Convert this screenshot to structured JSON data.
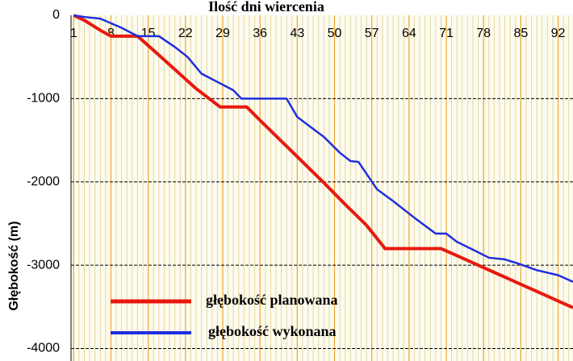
{
  "chart_data": {
    "type": "line",
    "title": "Ilość dni wiercenia",
    "y_label": "Głębokość (m)",
    "xlim": [
      0.5,
      94.8
    ],
    "xticks": [
      1,
      8,
      15,
      22,
      29,
      36,
      43,
      50,
      57,
      64,
      71,
      78,
      85,
      92
    ],
    "ylim": [
      -4150,
      0
    ],
    "yticks": [
      0,
      -1000,
      -2000,
      -3000,
      -4000
    ],
    "grid": true,
    "legend": "lower left",
    "series": [
      {
        "name": "głębokość planowana",
        "color": "#e8190f",
        "x": [
          1,
          3,
          6,
          8,
          13,
          16,
          20,
          24,
          28.5,
          33.5,
          36,
          40,
          44,
          48,
          52,
          56,
          59.5,
          70,
          75,
          80,
          85,
          90,
          94.8
        ],
        "values": [
          0,
          -60,
          -180,
          -250,
          -250,
          -420,
          -650,
          -880,
          -1100,
          -1100,
          -1260,
          -1510,
          -1760,
          -2010,
          -2270,
          -2520,
          -2800,
          -2800,
          -2943,
          -3086,
          -3229,
          -3372,
          -3510
        ]
      },
      {
        "name": "głębokość wykonana",
        "color": "#1f2ee0",
        "x": [
          1,
          3,
          6,
          10,
          13,
          17,
          20,
          22.4,
          25,
          28,
          31,
          32.5,
          41,
          43,
          48,
          51,
          53,
          54.5,
          58,
          61,
          65,
          69,
          71,
          73,
          76.5,
          79,
          82,
          84.5,
          88,
          92,
          94.8
        ],
        "values": [
          0,
          -20,
          -40,
          -150,
          -250,
          -250,
          -380,
          -500,
          -700,
          -800,
          -900,
          -1000,
          -1000,
          -1220,
          -1460,
          -1650,
          -1750,
          -1760,
          -2090,
          -2230,
          -2430,
          -2620,
          -2620,
          -2720,
          -2830,
          -2910,
          -2930,
          -2980,
          -3060,
          -3120,
          -3200
        ]
      }
    ]
  }
}
